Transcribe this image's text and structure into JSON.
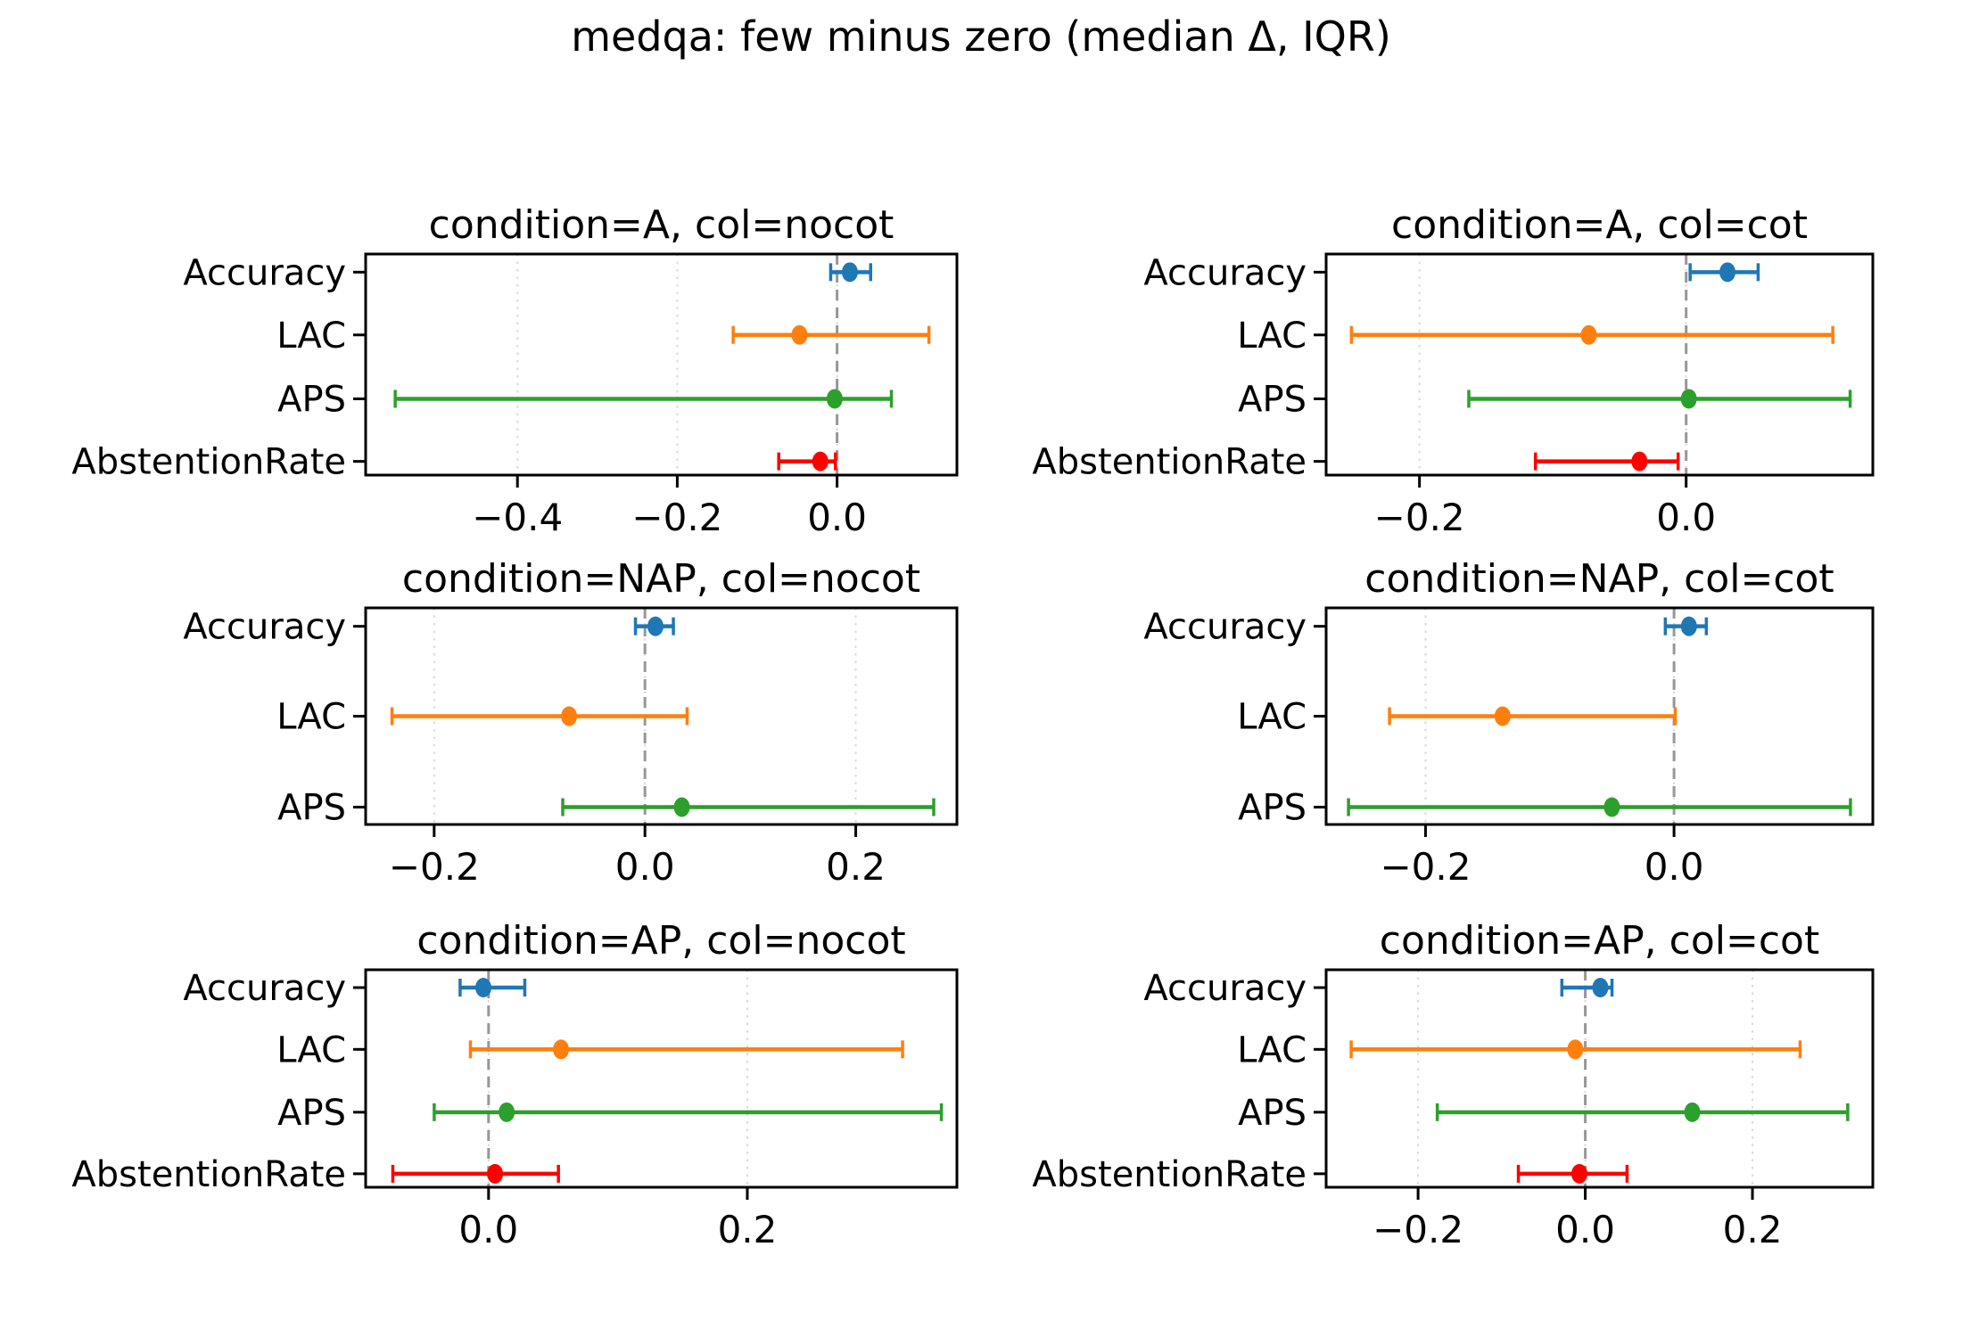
{
  "figure": {
    "suptitle": "medqa: few minus zero (median Δ, IQR)",
    "background": "#ffffff"
  },
  "colors": {
    "accuracy": "#1f77b4",
    "lac": "#ff7f0e",
    "aps": "#2ca02c",
    "abstention_rate": "#ff0000",
    "zero_line": "#979797",
    "grid": "#d9d9d9",
    "axis": "#000000",
    "text": "#000000"
  },
  "chart_data": [
    {
      "type": "errorbar_h",
      "title": "condition=A, col=nocot",
      "xlim": [
        -0.59,
        0.15
      ],
      "xticks": [
        -0.4,
        -0.2,
        0.0
      ],
      "zero_line": 0.0,
      "grid": true,
      "categories": [
        "Accuracy",
        "LAC",
        "APS",
        "AbstentionRate"
      ],
      "series": [
        {
          "metric": "Accuracy",
          "color": "#1f77b4",
          "q1": -0.008,
          "median": 0.016,
          "q3": 0.042
        },
        {
          "metric": "LAC",
          "color": "#ff7f0e",
          "q1": -0.13,
          "median": -0.047,
          "q3": 0.115
        },
        {
          "metric": "APS",
          "color": "#2ca02c",
          "q1": -0.553,
          "median": -0.003,
          "q3": 0.068
        },
        {
          "metric": "AbstentionRate",
          "color": "#ff0000",
          "q1": -0.073,
          "median": -0.021,
          "q3": -0.002
        }
      ]
    },
    {
      "type": "errorbar_h",
      "title": "condition=A, col=cot",
      "xlim": [
        -0.27,
        0.14
      ],
      "xticks": [
        -0.2,
        0.0
      ],
      "zero_line": 0.0,
      "grid": true,
      "categories": [
        "Accuracy",
        "LAC",
        "APS",
        "AbstentionRate"
      ],
      "series": [
        {
          "metric": "Accuracy",
          "color": "#1f77b4",
          "q1": 0.003,
          "median": 0.031,
          "q3": 0.054
        },
        {
          "metric": "LAC",
          "color": "#ff7f0e",
          "q1": -0.251,
          "median": -0.073,
          "q3": 0.11
        },
        {
          "metric": "APS",
          "color": "#2ca02c",
          "q1": -0.163,
          "median": 0.002,
          "q3": 0.123
        },
        {
          "metric": "AbstentionRate",
          "color": "#ff0000",
          "q1": -0.113,
          "median": -0.035,
          "q3": -0.006
        }
      ]
    },
    {
      "type": "errorbar_h",
      "title": "condition=NAP, col=nocot",
      "xlim": [
        -0.265,
        0.296
      ],
      "xticks": [
        -0.2,
        0.0,
        0.2
      ],
      "zero_line": 0.0,
      "grid": true,
      "categories": [
        "Accuracy",
        "LAC",
        "APS"
      ],
      "series": [
        {
          "metric": "Accuracy",
          "color": "#1f77b4",
          "q1": -0.009,
          "median": 0.01,
          "q3": 0.027
        },
        {
          "metric": "LAC",
          "color": "#ff7f0e",
          "q1": -0.24,
          "median": -0.072,
          "q3": 0.04
        },
        {
          "metric": "APS",
          "color": "#2ca02c",
          "q1": -0.078,
          "median": 0.035,
          "q3": 0.274
        }
      ]
    },
    {
      "type": "errorbar_h",
      "title": "condition=NAP, col=cot",
      "xlim": [
        -0.28,
        0.16
      ],
      "xticks": [
        -0.2,
        0.0
      ],
      "zero_line": 0.0,
      "grid": true,
      "categories": [
        "Accuracy",
        "LAC",
        "APS"
      ],
      "series": [
        {
          "metric": "Accuracy",
          "color": "#1f77b4",
          "q1": -0.007,
          "median": 0.012,
          "q3": 0.026
        },
        {
          "metric": "LAC",
          "color": "#ff7f0e",
          "q1": -0.229,
          "median": -0.138,
          "q3": 0.001
        },
        {
          "metric": "APS",
          "color": "#2ca02c",
          "q1": -0.262,
          "median": -0.05,
          "q3": 0.142
        }
      ]
    },
    {
      "type": "errorbar_h",
      "title": "condition=AP, col=nocot",
      "xlim": [
        -0.095,
        0.362
      ],
      "xticks": [
        0.0,
        0.2
      ],
      "zero_line": 0.0,
      "grid": true,
      "categories": [
        "Accuracy",
        "LAC",
        "APS",
        "AbstentionRate"
      ],
      "series": [
        {
          "metric": "Accuracy",
          "color": "#1f77b4",
          "q1": -0.022,
          "median": -0.004,
          "q3": 0.028
        },
        {
          "metric": "LAC",
          "color": "#ff7f0e",
          "q1": -0.014,
          "median": 0.056,
          "q3": 0.32
        },
        {
          "metric": "APS",
          "color": "#2ca02c",
          "q1": -0.042,
          "median": 0.014,
          "q3": 0.35
        },
        {
          "metric": "AbstentionRate",
          "color": "#ff0000",
          "q1": -0.074,
          "median": 0.005,
          "q3": 0.054
        }
      ]
    },
    {
      "type": "errorbar_h",
      "title": "condition=AP, col=cot",
      "xlim": [
        -0.31,
        0.344
      ],
      "xticks": [
        -0.2,
        0.0,
        0.2
      ],
      "zero_line": 0.0,
      "grid": true,
      "categories": [
        "Accuracy",
        "LAC",
        "APS",
        "AbstentionRate"
      ],
      "series": [
        {
          "metric": "Accuracy",
          "color": "#1f77b4",
          "q1": -0.028,
          "median": 0.018,
          "q3": 0.032
        },
        {
          "metric": "LAC",
          "color": "#ff7f0e",
          "q1": -0.28,
          "median": -0.012,
          "q3": 0.257
        },
        {
          "metric": "APS",
          "color": "#2ca02c",
          "q1": -0.177,
          "median": 0.128,
          "q3": 0.314
        },
        {
          "metric": "AbstentionRate",
          "color": "#ff0000",
          "q1": -0.08,
          "median": -0.007,
          "q3": 0.05
        }
      ]
    }
  ]
}
